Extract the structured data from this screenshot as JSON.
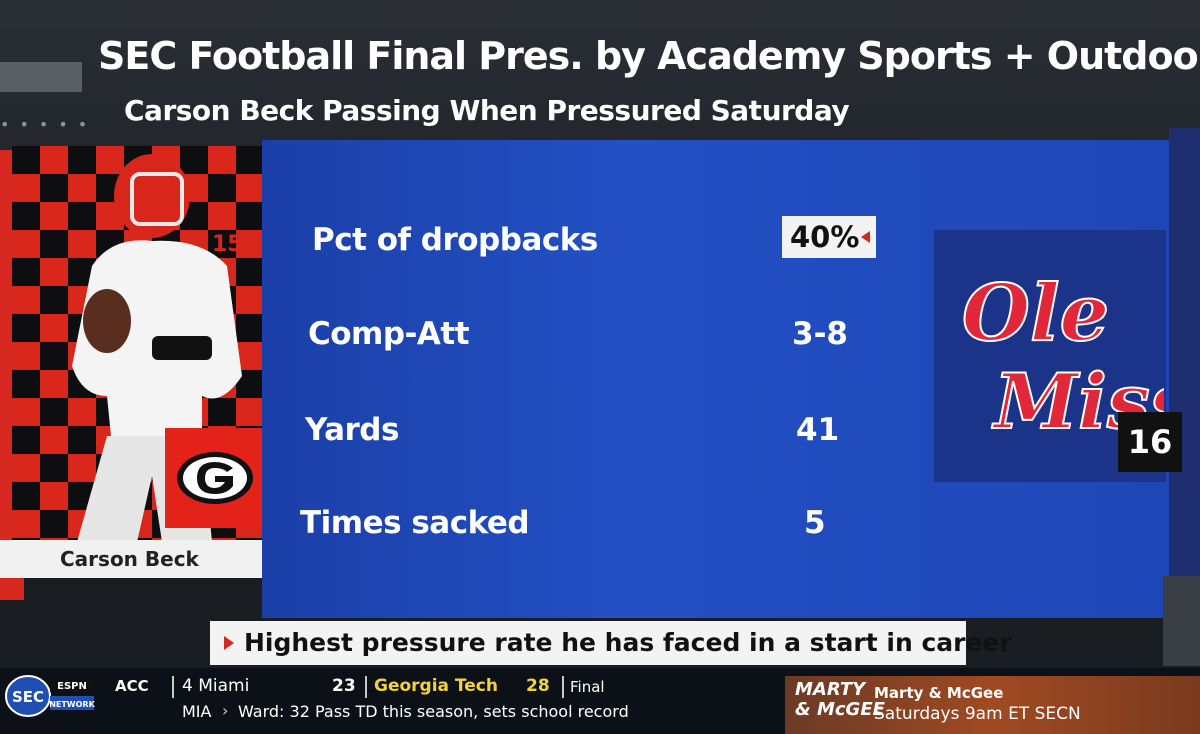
{
  "header": {
    "title": "SEC Football Final Pres. by Academy Sports + Outdoors",
    "subtitle": "Carson Beck Passing When Pressured Saturday"
  },
  "player": {
    "name": "Carson Beck",
    "jersey": "15"
  },
  "stats": [
    {
      "label": "Pct of dropbacks",
      "value": "40%"
    },
    {
      "label": "Comp-Att",
      "value": "3-8"
    },
    {
      "label": "Yards",
      "value": "41"
    },
    {
      "label": "Times sacked",
      "value": "5"
    }
  ],
  "opponent": {
    "logo_text_1": "Ole",
    "logo_text_2": "Miss",
    "rank": "16"
  },
  "note": "Highest pressure rate he has faced in a start in career",
  "ticker": {
    "network_top": "SEC",
    "network_sub": "NETWORK",
    "conference": "ACC",
    "team1": "4 Miami",
    "score1": "23",
    "team2": "Georgia Tech",
    "score2": "28",
    "status": "Final",
    "abbr": "MIA",
    "headline": "Ward: 32 Pass TD this season, sets school record"
  },
  "promo": {
    "logo_line1": "MARTY",
    "logo_line2": "& McGEE",
    "title": "Marty & McGee",
    "schedule": "Saturdays 9am ET SECN"
  },
  "colors": {
    "stats_blue": "#2350c4",
    "georgia_red": "#d8261b",
    "ole_miss_red": "#e0283a",
    "ole_miss_navy": "#1b3489",
    "ticker_yellow": "#f4d23a"
  }
}
